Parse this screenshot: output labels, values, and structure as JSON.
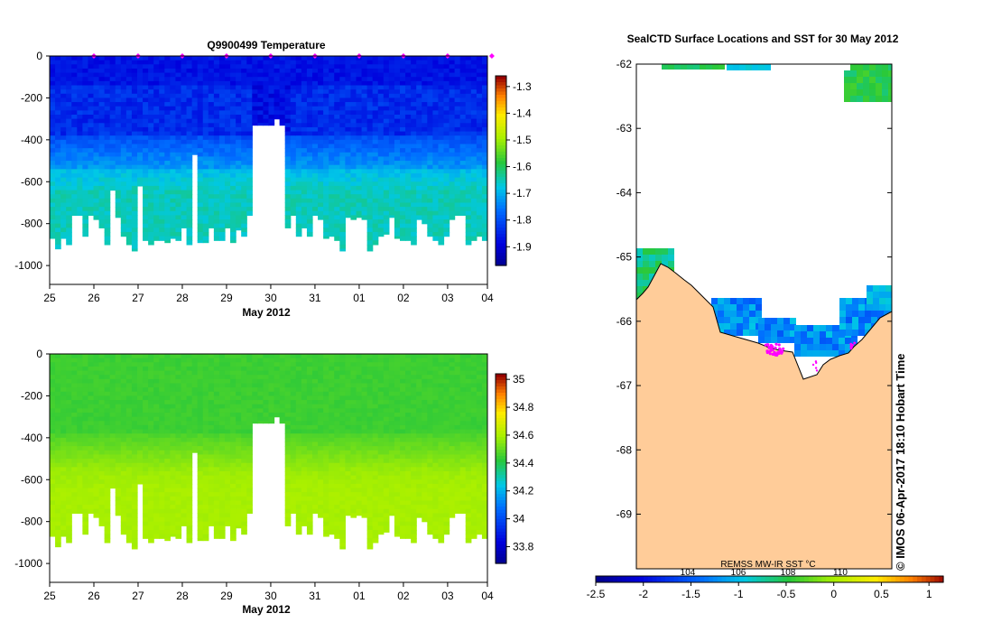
{
  "chart_data": [
    {
      "type": "heatmap",
      "title": "Q9900499  Temperature",
      "xlabel": "May 2012",
      "ylabel": "",
      "x_tick_labels": [
        "25",
        "26",
        "27",
        "28",
        "29",
        "30",
        "31",
        "01",
        "02",
        "03",
        "04"
      ],
      "y_ticks": [
        0,
        -200,
        -400,
        -600,
        -800,
        -1000
      ],
      "ylim": [
        -1090,
        0
      ],
      "xlim": [
        0,
        9.9
      ],
      "colorbar": {
        "ticks": [
          -1.3,
          -1.4,
          -1.5,
          -1.6,
          -1.7,
          -1.8,
          -1.9
        ],
        "range": [
          -1.97,
          -1.26
        ]
      },
      "layers": {
        "cold_to_depth": -160,
        "mid_to_depth": -540,
        "deep_base": -760
      },
      "profile_marker_days": [
        1,
        2,
        3,
        4,
        5,
        6,
        7,
        8,
        9,
        10
      ]
    },
    {
      "type": "heatmap",
      "title": "",
      "xlabel": "May 2012",
      "ylabel": "",
      "x_tick_labels": [
        "25",
        "26",
        "27",
        "28",
        "29",
        "30",
        "31",
        "01",
        "02",
        "03",
        "04"
      ],
      "y_ticks": [
        0,
        -200,
        -400,
        -600,
        -800,
        -1000
      ],
      "ylim": [
        -1090,
        0
      ],
      "xlim": [
        0,
        9.9
      ],
      "colorbar": {
        "ticks": [
          35,
          34.8,
          34.6,
          34.4,
          34.2,
          34,
          33.8
        ],
        "range": [
          33.68,
          35.04
        ]
      },
      "layers": {
        "upper_to_depth": -400,
        "transition_to_depth": -560
      }
    },
    {
      "type": "heatmap",
      "title": "SealCTD Surface Locations and SST for 30 May 2012",
      "y_ticks": [
        -62,
        -63,
        -64,
        -65,
        -66,
        -67,
        -68,
        -69
      ],
      "ylim": [
        -69.85,
        -62
      ],
      "colorbar_label": "REMSS MW-IR SST °C",
      "colorbar": {
        "ticks": [
          -2.5,
          -2,
          -1.5,
          -1,
          -0.5,
          0,
          0.5,
          1
        ],
        "range": [
          -2.5,
          1.15
        ],
        "overlay_labels": [
          "104",
          "106",
          "108",
          "110"
        ]
      },
      "coastline_lat_at_left": -65.75,
      "coastline_lat_at_right": -65.85
    }
  ],
  "profile_depths": [
    870,
    920,
    870,
    900,
    760,
    760,
    860,
    760,
    780,
    820,
    900,
    640,
    770,
    860,
    900,
    930,
    620,
    880,
    900,
    880,
    880,
    890,
    870,
    880,
    820,
    900,
    470,
    890,
    890,
    820,
    880,
    880,
    820,
    890,
    830,
    860,
    760,
    330,
    330,
    330,
    330,
    300,
    330,
    820,
    760,
    860,
    820,
    860,
    760,
    780,
    870,
    860,
    880,
    930,
    770,
    780,
    770,
    780,
    930,
    900,
    860,
    850,
    770,
    870,
    880,
    880,
    900,
    780,
    800,
    860,
    880,
    900,
    860,
    780,
    760,
    760,
    900,
    880,
    860,
    880
  ],
  "credit": "©  IMOS 06-Apr-2017 18:10 Hobart Time"
}
